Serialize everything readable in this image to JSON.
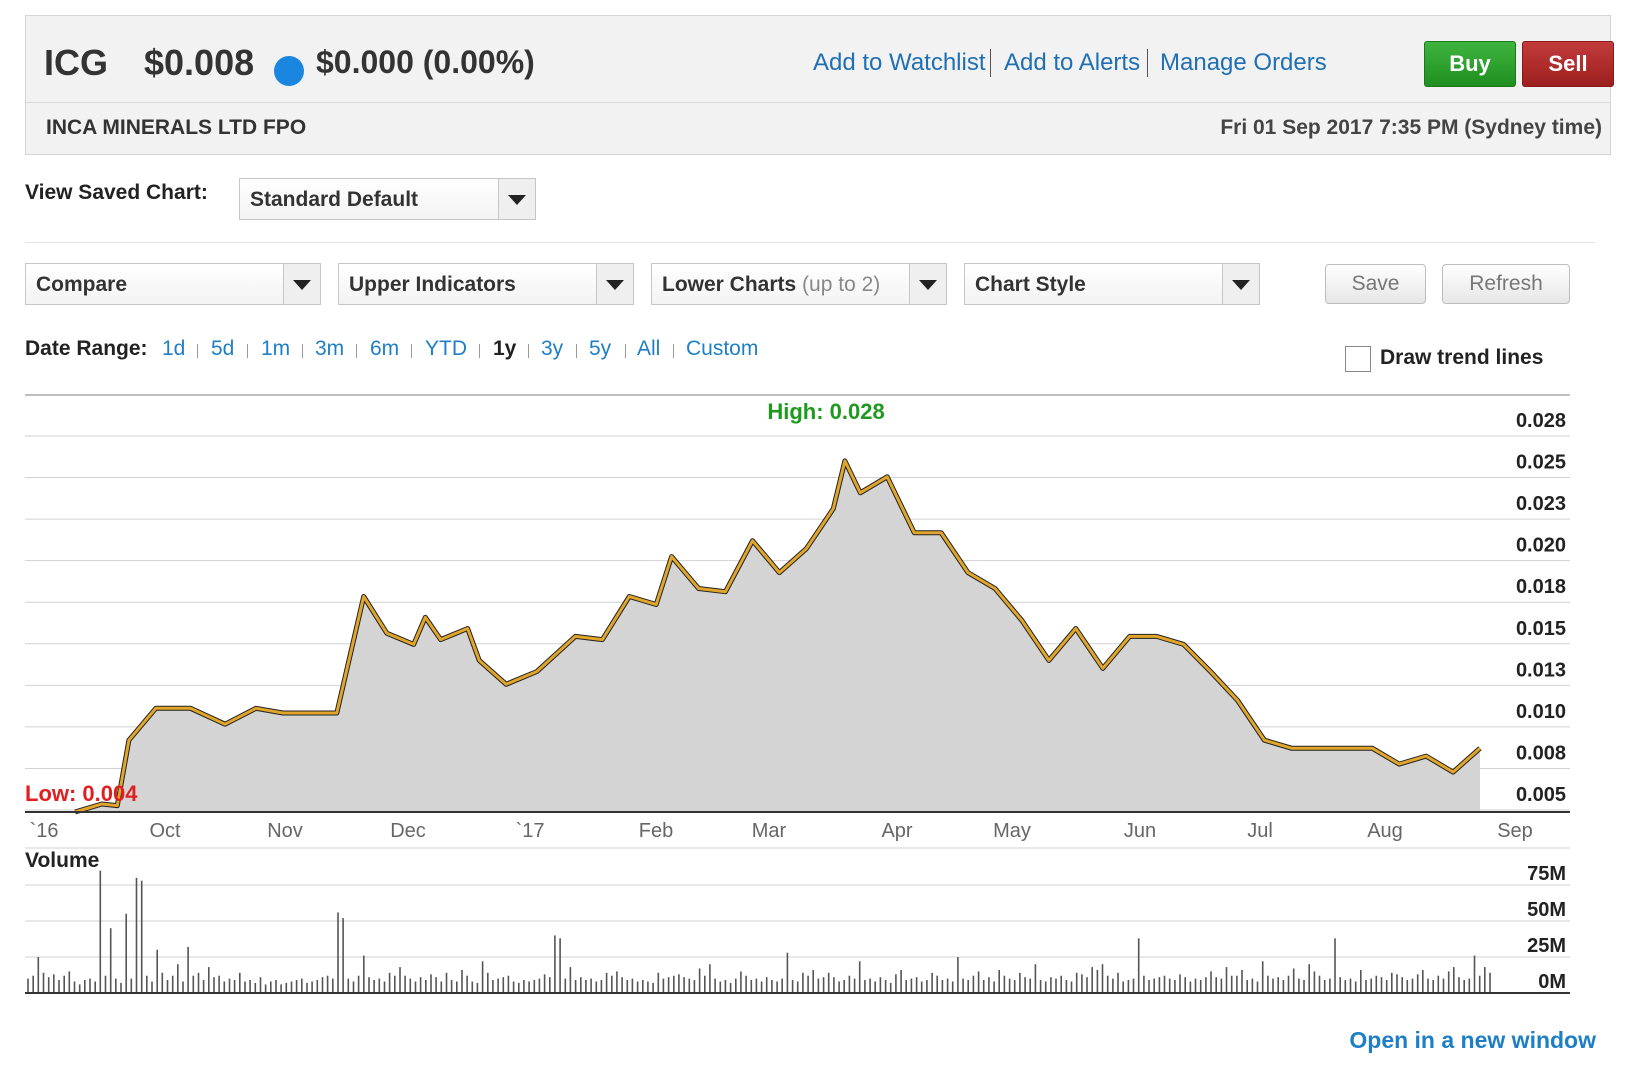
{
  "header": {
    "ticker": "ICG",
    "price": "$0.008",
    "change": "$0.000 (0.00%)",
    "links": [
      "Add to Watchlist",
      "Add to Alerts",
      "Manage Orders"
    ],
    "buy_label": "Buy",
    "sell_label": "Sell",
    "company": "INCA MINERALS LTD FPO",
    "datetime": "Fri 01 Sep 2017 7:35 PM (Sydney time)",
    "status_dot_color": "#1b86e0"
  },
  "saved_chart": {
    "label": "View Saved Chart:",
    "value": "Standard Default"
  },
  "toolbar": {
    "compare": "Compare",
    "upper_indicators": "Upper Indicators",
    "lower_charts": "Lower Charts",
    "lower_charts_hint": "(up to 2)",
    "chart_style": "Chart Style",
    "save": "Save",
    "refresh": "Refresh"
  },
  "date_range": {
    "label": "Date Range:",
    "options": [
      "1d",
      "5d",
      "1m",
      "3m",
      "6m",
      "YTD",
      "1y",
      "3y",
      "5y",
      "All",
      "Custom"
    ],
    "selected": "1y"
  },
  "trend_lines": {
    "label": "Draw trend lines",
    "checked": false
  },
  "open_link": "Open in a new window",
  "chart_data": [
    {
      "type": "area",
      "title": "",
      "high_label": "High: 0.028",
      "low_label": "Low: 0.004",
      "line_color": "#e0a52a",
      "fill_color": "#d4d4d4",
      "x_ticks": [
        "`16",
        "Oct",
        "Nov",
        "Dec",
        "`17",
        "Feb",
        "Mar",
        "Apr",
        "May",
        "Jun",
        "Jul",
        "Aug",
        "Sep"
      ],
      "y_ticks": [
        "0.028",
        "0.025",
        "0.023",
        "0.020",
        "0.018",
        "0.015",
        "0.013",
        "0.010",
        "0.008",
        "0.005"
      ],
      "ylim": [
        0.004,
        0.0295
      ],
      "x": [
        "2016-09-01",
        "2016-09-08",
        "2016-09-12",
        "2016-09-15",
        "2016-09-22",
        "2016-10-01",
        "2016-10-10",
        "2016-10-18",
        "2016-10-25",
        "2016-11-01",
        "2016-11-08",
        "2016-11-15",
        "2016-11-21",
        "2016-11-28",
        "2016-12-01",
        "2016-12-05",
        "2016-12-12",
        "2016-12-15",
        "2016-12-22",
        "2016-12-30",
        "2017-01-09",
        "2017-01-16",
        "2017-01-23",
        "2017-01-30",
        "2017-02-03",
        "2017-02-10",
        "2017-02-17",
        "2017-02-24",
        "2017-03-03",
        "2017-03-10",
        "2017-03-17",
        "2017-03-20",
        "2017-03-24",
        "2017-03-31",
        "2017-04-07",
        "2017-04-14",
        "2017-04-21",
        "2017-04-28",
        "2017-05-05",
        "2017-05-12",
        "2017-05-19",
        "2017-05-26",
        "2017-06-02",
        "2017-06-09",
        "2017-06-16",
        "2017-06-23",
        "2017-06-30",
        "2017-07-07",
        "2017-07-14",
        "2017-07-21",
        "2017-07-28",
        "2017-08-04",
        "2017-08-11",
        "2017-08-18",
        "2017-08-25",
        "2017-09-01"
      ],
      "y": [
        0.004,
        0.0045,
        0.0044,
        0.0085,
        0.0105,
        0.0105,
        0.0095,
        0.0105,
        0.0102,
        0.0102,
        0.0102,
        0.0175,
        0.0152,
        0.0145,
        0.0162,
        0.0148,
        0.0155,
        0.0135,
        0.012,
        0.0128,
        0.015,
        0.0148,
        0.0175,
        0.017,
        0.02,
        0.018,
        0.0178,
        0.021,
        0.019,
        0.0205,
        0.023,
        0.026,
        0.024,
        0.025,
        0.0215,
        0.0215,
        0.019,
        0.018,
        0.016,
        0.0135,
        0.0155,
        0.013,
        0.015,
        0.015,
        0.0145,
        0.0128,
        0.011,
        0.0085,
        0.008,
        0.008,
        0.008,
        0.008,
        0.007,
        0.0075,
        0.0065,
        0.008
      ]
    },
    {
      "type": "bar",
      "title": "Volume",
      "y_ticks": [
        "75M",
        "50M",
        "25M",
        "0M"
      ],
      "ylim": [
        0,
        90
      ],
      "bar_color": "#555555",
      "values": [
        10,
        12,
        25,
        14,
        11,
        13,
        9,
        12,
        15,
        8,
        6,
        9,
        10,
        8,
        85,
        12,
        45,
        10,
        7,
        55,
        10,
        80,
        78,
        12,
        8,
        30,
        14,
        9,
        12,
        20,
        8,
        32,
        12,
        14,
        9,
        18,
        11,
        12,
        8,
        10,
        9,
        14,
        8,
        9,
        7,
        11,
        6,
        8,
        9,
        6,
        7,
        8,
        9,
        10,
        7,
        8,
        9,
        11,
        12,
        10,
        56,
        52,
        10,
        8,
        12,
        26,
        11,
        9,
        10,
        8,
        14,
        12,
        18,
        12,
        10,
        8,
        11,
        9,
        13,
        11,
        8,
        14,
        9,
        8,
        16,
        12,
        8,
        7,
        22,
        14,
        9,
        10,
        11,
        12,
        8,
        7,
        9,
        8,
        9,
        10,
        13,
        11,
        40,
        38,
        10,
        18,
        9,
        11,
        9,
        10,
        8,
        9,
        14,
        12,
        15,
        11,
        9,
        10,
        8,
        9,
        8,
        7,
        14,
        10,
        11,
        12,
        13,
        11,
        10,
        9,
        17,
        12,
        20,
        10,
        8,
        9,
        7,
        10,
        15,
        12,
        9,
        10,
        8,
        11,
        9,
        8,
        10,
        28,
        9,
        8,
        14,
        12,
        16,
        10,
        11,
        14,
        11,
        8,
        9,
        12,
        10,
        22,
        9,
        10,
        8,
        11,
        9,
        7,
        13,
        16,
        9,
        10,
        11,
        8,
        9,
        14,
        12,
        9,
        10,
        8,
        25,
        10,
        9,
        12,
        15,
        9,
        11,
        8,
        16,
        12,
        10,
        9,
        14,
        11,
        10,
        20,
        9,
        8,
        11,
        10,
        12,
        9,
        8,
        14,
        13,
        11,
        18,
        16,
        20,
        12,
        10,
        14,
        8,
        9,
        10,
        38,
        12,
        9,
        10,
        11,
        12,
        10,
        9,
        13,
        11,
        8,
        10,
        9,
        11,
        15,
        11,
        10,
        18,
        12,
        12,
        16,
        9,
        10,
        8,
        22,
        12,
        10,
        11,
        9,
        12,
        17,
        10,
        9,
        20,
        15,
        12,
        9,
        10,
        38,
        11,
        9,
        10,
        8,
        16,
        9,
        10,
        12,
        11,
        9,
        14,
        13,
        11,
        9,
        10,
        13,
        16,
        10,
        9,
        12,
        10,
        15,
        18,
        11,
        9,
        10,
        26,
        12,
        18,
        14
      ]
    }
  ]
}
